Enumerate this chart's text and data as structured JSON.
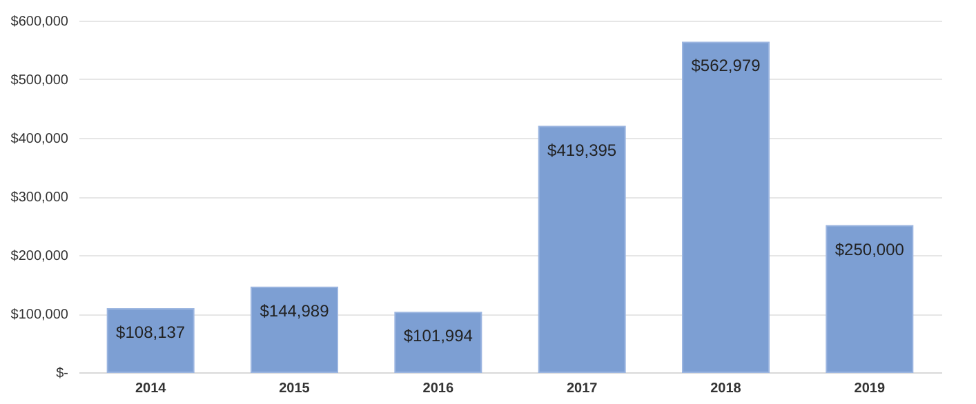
{
  "chart_data": {
    "type": "bar",
    "categories": [
      "2014",
      "2015",
      "2016",
      "2017",
      "2018",
      "2019"
    ],
    "values": [
      108137,
      144989,
      101994,
      419395,
      562979,
      250000
    ],
    "value_labels": [
      "$108,137",
      "$144,989",
      "$101,994",
      "$419,395",
      "$562,979",
      "$250,000"
    ],
    "color": "#7d9fd3",
    "ylim": [
      0,
      600000
    ],
    "yticks": [
      {
        "value": 0,
        "label": "$-"
      },
      {
        "value": 100000,
        "label": "$100,000"
      },
      {
        "value": 200000,
        "label": "$200,000"
      },
      {
        "value": 300000,
        "label": "$300,000"
      },
      {
        "value": 400000,
        "label": "$400,000"
      },
      {
        "value": 500000,
        "label": "$500,000"
      },
      {
        "value": 600000,
        "label": "$600,000"
      }
    ],
    "grid": "y"
  }
}
